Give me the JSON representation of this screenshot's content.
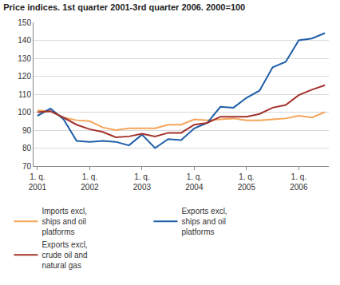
{
  "chart_data": {
    "type": "line",
    "title": "Price indices. 1st quarter 2001-3rd quarter 2006. 2000=100",
    "categories": [
      "1. q. 2001",
      null,
      null,
      null,
      "1. q. 2002",
      null,
      null,
      null,
      "1. q. 2003",
      null,
      null,
      null,
      "1. q. 2004",
      null,
      null,
      null,
      "1. q. 2005",
      null,
      null,
      null,
      "1. q. 2006",
      null,
      null
    ],
    "series": [
      {
        "name": "Imports excl, ships and oil platforms",
        "color": "#f5a55a",
        "values": [
          101,
          100.5,
          97,
          95.5,
          95,
          91.5,
          90,
          91,
          91,
          91,
          93,
          93,
          96,
          95.5,
          96,
          96.5,
          95.5,
          95.5,
          96,
          96.5,
          98,
          97,
          100
        ]
      },
      {
        "name": "Exports excl, ships and oil platforms",
        "color": "#1f5fa8",
        "values": [
          98,
          102,
          96,
          84,
          83.5,
          84,
          83.5,
          81.5,
          87.5,
          80,
          85,
          84.5,
          91,
          94,
          103,
          102.5,
          108,
          112,
          125,
          128,
          140,
          141,
          144
        ]
      },
      {
        "name": "Exports excl, crude oil and natural gas",
        "color": "#a3322b",
        "values": [
          100,
          100.5,
          97,
          93,
          90.5,
          89,
          86,
          86.5,
          88,
          86.5,
          88.5,
          88.5,
          93,
          94,
          97.5,
          97.5,
          97.5,
          99,
          102.5,
          104,
          109.5,
          112.5,
          115
        ]
      }
    ],
    "ylim": [
      70,
      150
    ],
    "yticks": [
      70,
      80,
      90,
      100,
      110,
      120,
      130,
      140,
      150
    ],
    "grid": true,
    "legend": "bottom"
  }
}
